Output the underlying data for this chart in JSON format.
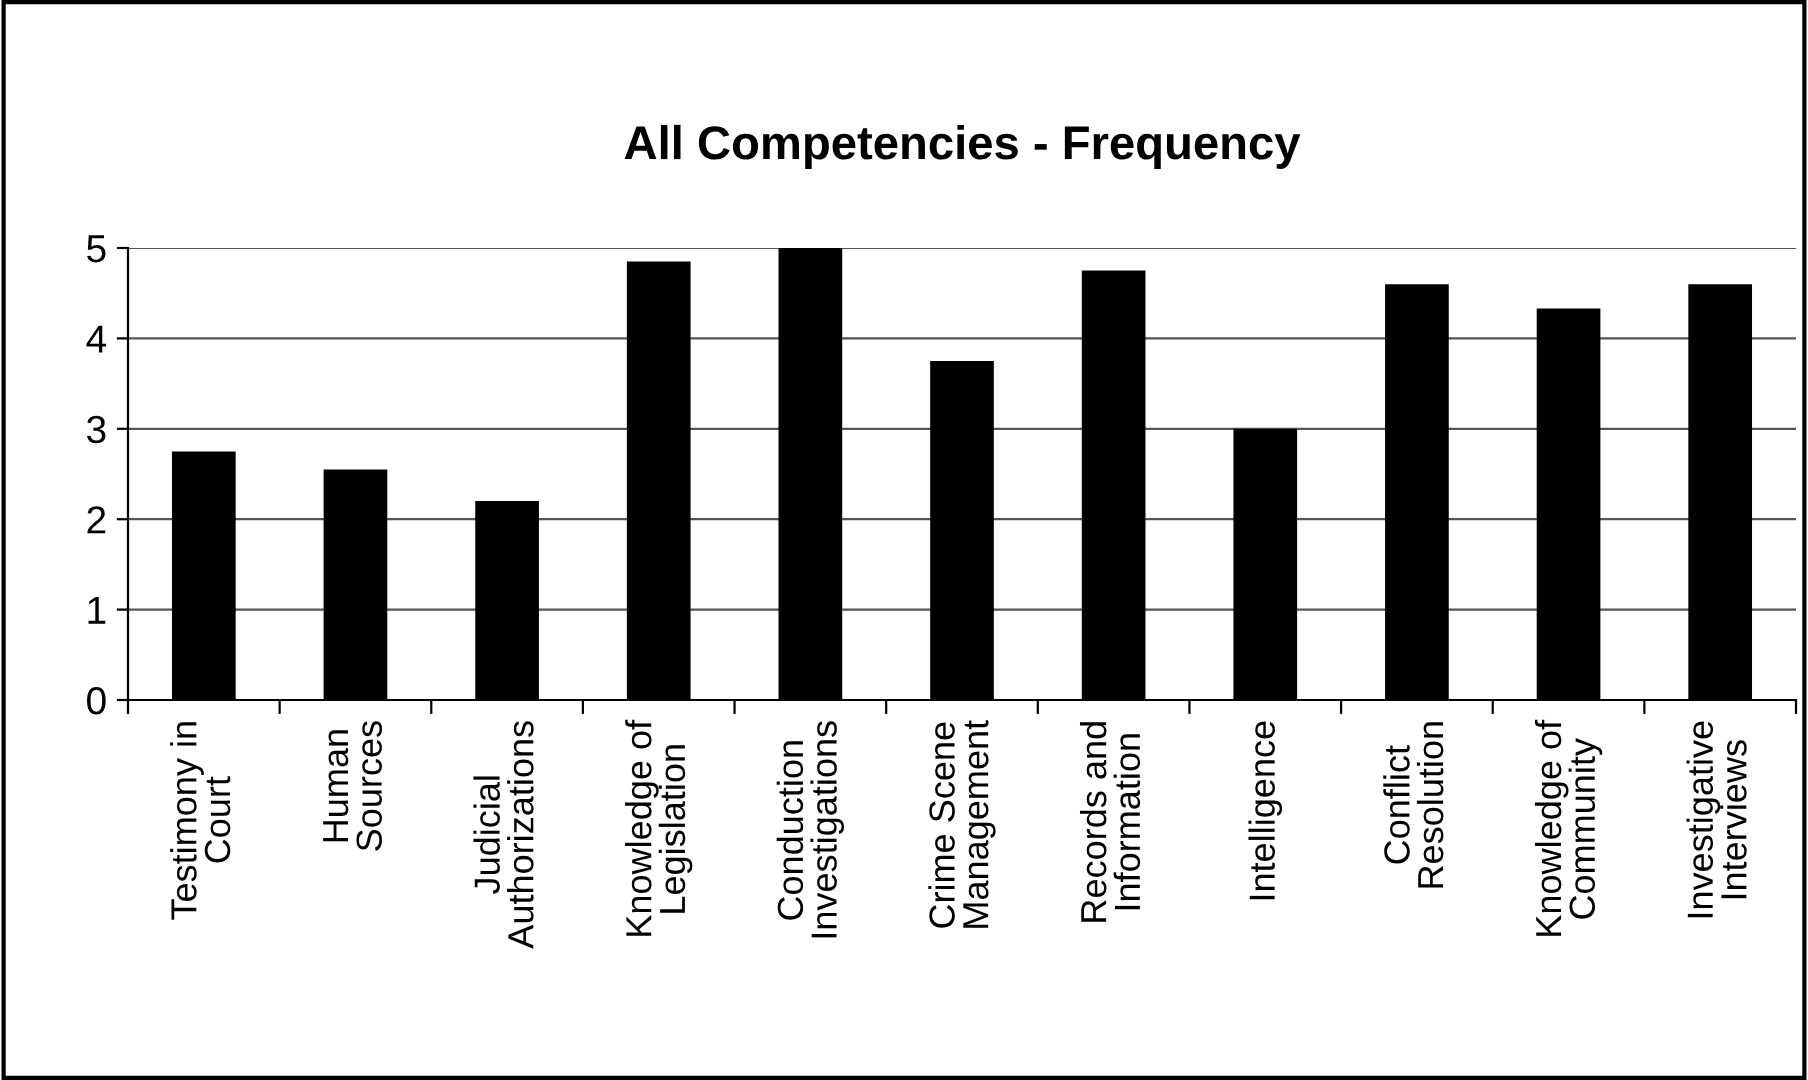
{
  "chart_data": {
    "type": "bar",
    "title": "All Competencies - Frequency",
    "categories": [
      "Testimony in\nCourt",
      "Human\nSources",
      "Judicial\nAuthorizations",
      "Knowledge of\nLegislation",
      "Conduction\nInvestigations",
      "Crime Scene\nManagement",
      "Records and\nInformation",
      "Intelligence",
      "Conflict\nResolution",
      "Knowledge of\nCommunity",
      "Investigative\nInterviews"
    ],
    "values": [
      2.75,
      2.55,
      2.2,
      4.85,
      5.0,
      3.75,
      4.75,
      3.0,
      4.6,
      4.33,
      4.6
    ],
    "color": "#000000",
    "ylim": [
      0,
      5
    ],
    "yticks": [
      0,
      1,
      2,
      3,
      4,
      5
    ],
    "grid": "y"
  }
}
